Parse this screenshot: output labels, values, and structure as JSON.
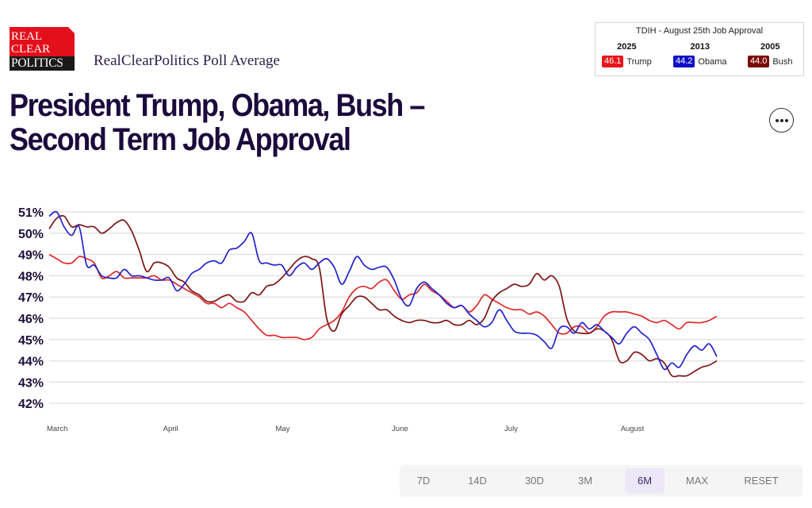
{
  "logo": {
    "line1": "REAL",
    "line2": "CLEAR",
    "line3": "POLITICS"
  },
  "subtitle": "RealClearPolitics Poll Average",
  "title_line1": "President Trump, Obama, Bush –",
  "title_line2": "Second Term Job Approval",
  "menu_icon": "more-horizontal-icon",
  "tdih": {
    "heading": "TDIH - August 25th Job Approval",
    "entries": [
      {
        "year": "2025",
        "value": "46.1",
        "name": "Trump",
        "color": "#e8161b"
      },
      {
        "year": "2013",
        "value": "44.2",
        "name": "Obama",
        "color": "#1010c8"
      },
      {
        "year": "2005",
        "value": "44.0",
        "name": "Bush",
        "color": "#7a0a0a"
      }
    ]
  },
  "range_buttons": [
    {
      "label": "7D",
      "active": false
    },
    {
      "label": "14D",
      "active": false
    },
    {
      "label": "30D",
      "active": false
    },
    {
      "label": "3M",
      "active": false
    },
    {
      "label": "6M",
      "active": true
    },
    {
      "label": "MAX",
      "active": false
    },
    {
      "label": "RESET",
      "active": false
    }
  ],
  "chart_data": {
    "type": "line",
    "title": "President Trump, Obama, Bush – Second Term Job Approval",
    "xlabel": "",
    "ylabel": "",
    "ylim": [
      42,
      51
    ],
    "yticks": [
      "42%",
      "43%",
      "44%",
      "45%",
      "46%",
      "47%",
      "48%",
      "49%",
      "50%",
      "51%"
    ],
    "ytick_values": [
      42,
      43,
      44,
      45,
      46,
      47,
      48,
      49,
      50,
      51
    ],
    "xlim_days": [
      0,
      201
    ],
    "xticks": [
      {
        "label": "March",
        "day": 0
      },
      {
        "label": "April",
        "day": 31
      },
      {
        "label": "May",
        "day": 61
      },
      {
        "label": "June",
        "day": 92
      },
      {
        "label": "July",
        "day": 122
      },
      {
        "label": "August",
        "day": 153
      }
    ],
    "grid": true,
    "x_unit": "days since March 1",
    "x_start_day": 0,
    "x_step_days": 2,
    "series": [
      {
        "name": "Obama",
        "color": "#2222cc",
        "values": [
          50.8,
          51.0,
          50.3,
          49.9,
          50.3,
          48.5,
          48.5,
          48.0,
          47.9,
          47.9,
          48.3,
          48.0,
          48.0,
          47.9,
          47.8,
          47.8,
          47.9,
          47.3,
          47.6,
          48.1,
          48.3,
          48.6,
          48.7,
          48.6,
          49.2,
          49.3,
          49.6,
          50.0,
          48.7,
          48.6,
          48.5,
          48.5,
          48.0,
          48.4,
          48.6,
          48.3,
          48.6,
          48.8,
          48.4,
          47.6,
          48.2,
          48.9,
          48.5,
          48.3,
          48.4,
          48.4,
          47.8,
          46.9,
          46.6,
          47.4,
          47.7,
          47.4,
          47.1,
          46.7,
          46.5,
          46.6,
          46.2,
          45.9,
          45.6,
          45.8,
          46.4,
          45.9,
          45.4,
          45.3,
          45.3,
          45.2,
          44.9,
          44.6,
          45.5,
          45.6,
          45.3,
          45.8,
          45.5,
          45.7,
          45.4,
          45.1,
          44.8,
          45.3,
          45.6,
          45.3,
          45.0,
          44.3,
          43.6,
          43.9,
          43.7,
          44.3,
          44.7,
          44.5,
          44.8,
          44.2
        ]
      },
      {
        "name": "Trump",
        "color": "#dd2a2a",
        "values": [
          49.0,
          48.8,
          48.6,
          48.6,
          48.9,
          48.8,
          48.6,
          47.9,
          48.0,
          48.2,
          47.9,
          47.9,
          47.9,
          47.9,
          48.0,
          47.8,
          47.8,
          47.6,
          47.4,
          47.2,
          47.0,
          46.7,
          46.7,
          46.5,
          46.7,
          46.5,
          46.3,
          45.9,
          45.5,
          45.2,
          45.2,
          45.1,
          45.1,
          45.1,
          45.0,
          45.1,
          45.5,
          45.7,
          45.9,
          46.3,
          47.0,
          47.4,
          47.5,
          47.4,
          47.7,
          47.8,
          47.3,
          46.9,
          47.1,
          47.2,
          47.6,
          47.3,
          47.1,
          46.8,
          46.5,
          46.6,
          46.3,
          46.6,
          47.1,
          46.9,
          46.7,
          46.5,
          46.4,
          46.4,
          46.2,
          46.3,
          46.1,
          45.7,
          45.3,
          45.3,
          45.6,
          45.6,
          45.3,
          45.6,
          46.1,
          46.3,
          46.3,
          46.3,
          46.2,
          46.1,
          45.9,
          45.8,
          45.9,
          45.7,
          45.5,
          45.8,
          45.8,
          45.8,
          45.9,
          46.1
        ]
      },
      {
        "name": "Bush",
        "color": "#7d1414",
        "values": [
          50.2,
          50.7,
          50.8,
          50.3,
          50.4,
          50.3,
          50.3,
          50.0,
          50.2,
          50.5,
          50.6,
          50.1,
          49.2,
          48.2,
          48.6,
          48.6,
          48.4,
          47.9,
          47.7,
          47.3,
          47.1,
          46.8,
          46.8,
          47.0,
          47.1,
          46.8,
          46.8,
          47.2,
          47.1,
          47.5,
          47.6,
          47.9,
          48.3,
          48.7,
          48.9,
          48.8,
          48.4,
          46.0,
          45.4,
          46.2,
          46.6,
          47.0,
          47.0,
          46.7,
          46.4,
          46.4,
          46.1,
          45.9,
          45.8,
          45.9,
          45.9,
          45.8,
          45.8,
          45.9,
          45.7,
          45.7,
          45.9,
          45.7,
          46.0,
          46.8,
          47.2,
          47.4,
          47.6,
          47.5,
          47.6,
          48.1,
          47.8,
          48.0,
          47.5,
          46.0,
          45.4,
          45.3,
          45.3,
          45.5,
          45.4,
          45.0,
          44.0,
          44.0,
          44.4,
          44.3,
          44.0,
          44.1,
          43.9,
          43.3,
          43.3,
          43.3,
          43.5,
          43.7,
          43.8,
          44.0
        ]
      }
    ]
  }
}
